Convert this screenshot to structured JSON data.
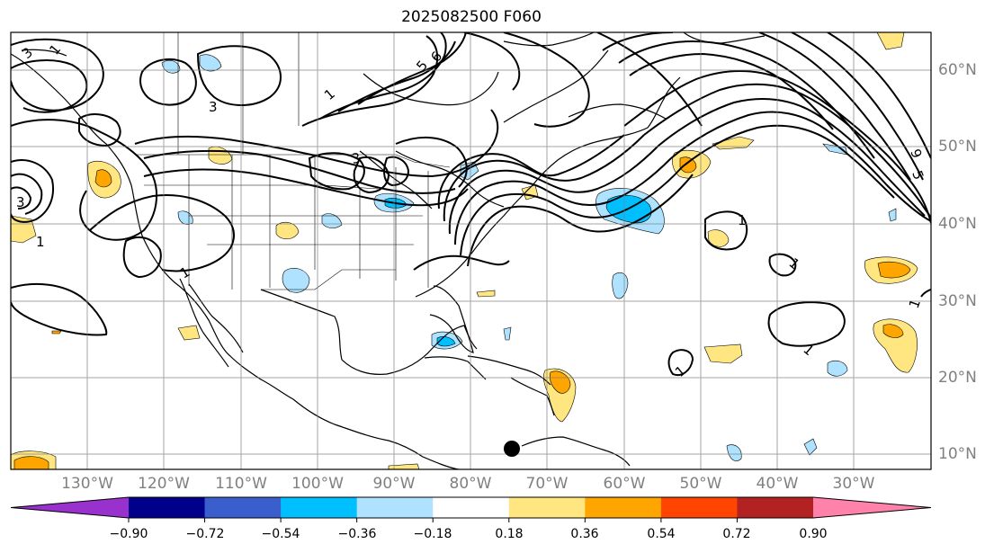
{
  "title": "2025082500 F060",
  "lat_labels": [
    "60°N",
    "50°N",
    "40°N",
    "30°N",
    "20°N",
    "10°N"
  ],
  "lon_labels": [
    "130°W",
    "120°W",
    "110°W",
    "100°W",
    "90°W",
    "80°W",
    "70°W",
    "60°W",
    "50°W",
    "40°W",
    "30°W"
  ],
  "colorbar": {
    "ticks": [
      "−0.90",
      "−0.72",
      "−0.54",
      "−0.36",
      "−0.18",
      "0.18",
      "0.36",
      "0.54",
      "0.72",
      "0.90"
    ],
    "colors": [
      "#9932cc",
      "#00008b",
      "#3a5fcd",
      "#00bfff",
      "#aee2ff",
      "#ffffff",
      "#ffe680",
      "#ffa500",
      "#ff4500",
      "#b22222",
      "#ff82ab"
    ]
  },
  "contour_labels": [
    "3",
    "1",
    "3",
    "5",
    "6",
    "1",
    "3",
    "3",
    "1",
    "1",
    "1",
    "1",
    "1",
    "1",
    "9",
    "5",
    "1"
  ],
  "marker": {
    "type": "filled-circle",
    "color": "#000000"
  }
}
